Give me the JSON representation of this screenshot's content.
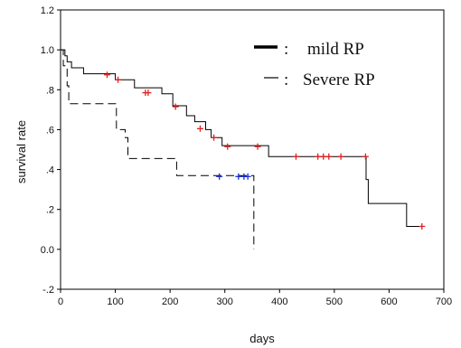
{
  "chart_data": {
    "type": "line",
    "subtype": "kaplan-meier",
    "xlabel": "days",
    "ylabel": "survival rate",
    "xlim": [
      0,
      700
    ],
    "ylim": [
      -0.2,
      1.2
    ],
    "x_ticks": [
      "0",
      "100",
      "200",
      "300",
      "400",
      "500",
      "600",
      "700"
    ],
    "y_ticks": [
      "-.2",
      "0.0",
      ".2",
      ".4",
      ".6",
      ".8",
      "1.0",
      "1.2"
    ],
    "grid": false,
    "legend_position": "top-right",
    "legend": [
      {
        "symbol": "▬",
        "separator": ":",
        "label": "mild RP",
        "style": "solid"
      },
      {
        "symbol": "—",
        "separator": ":",
        "label": "Severe RP",
        "style": "dashed"
      }
    ],
    "series": [
      {
        "name": "mild RP",
        "style": "solid",
        "steps": [
          [
            0,
            1.0
          ],
          [
            8,
            0.97
          ],
          [
            12,
            0.94
          ],
          [
            20,
            0.91
          ],
          [
            42,
            0.88
          ],
          [
            100,
            0.85
          ],
          [
            135,
            0.81
          ],
          [
            185,
            0.78
          ],
          [
            205,
            0.72
          ],
          [
            230,
            0.67
          ],
          [
            245,
            0.64
          ],
          [
            265,
            0.6
          ],
          [
            275,
            0.56
          ],
          [
            295,
            0.52
          ],
          [
            380,
            0.465
          ],
          [
            555,
            0.465
          ],
          [
            558,
            0.35
          ],
          [
            562,
            0.23
          ],
          [
            628,
            0.23
          ],
          [
            632,
            0.115
          ],
          [
            660,
            0.115
          ]
        ],
        "censored": [
          [
            85,
            0.875
          ],
          [
            105,
            0.85
          ],
          [
            155,
            0.785
          ],
          [
            160,
            0.785
          ],
          [
            210,
            0.715
          ],
          [
            255,
            0.605
          ],
          [
            280,
            0.56
          ],
          [
            305,
            0.515
          ],
          [
            360,
            0.515
          ],
          [
            430,
            0.465
          ],
          [
            470,
            0.465
          ],
          [
            480,
            0.465
          ],
          [
            490,
            0.465
          ],
          [
            512,
            0.465
          ],
          [
            557,
            0.465
          ],
          [
            660,
            0.115
          ]
        ],
        "censored_color": "#e02020"
      },
      {
        "name": "Severe RP",
        "style": "dashed",
        "steps": [
          [
            0,
            1.0
          ],
          [
            5,
            0.92
          ],
          [
            12,
            0.82
          ],
          [
            15,
            0.73
          ],
          [
            98,
            0.73
          ],
          [
            102,
            0.6
          ],
          [
            118,
            0.56
          ],
          [
            123,
            0.455
          ],
          [
            208,
            0.455
          ],
          [
            212,
            0.37
          ],
          [
            352,
            0.37
          ],
          [
            353,
            0.0
          ]
        ],
        "censored": [
          [
            290,
            0.365
          ],
          [
            325,
            0.365
          ],
          [
            335,
            0.365
          ],
          [
            342,
            0.365
          ]
        ],
        "censored_color": "#1a2fd0"
      }
    ]
  }
}
